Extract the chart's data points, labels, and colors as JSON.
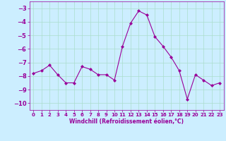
{
  "xlabel": "Windchill (Refroidissement éolien,°C)",
  "x": [
    0,
    1,
    2,
    3,
    4,
    5,
    6,
    7,
    8,
    9,
    10,
    11,
    12,
    13,
    14,
    15,
    16,
    17,
    18,
    19,
    20,
    21,
    22,
    23
  ],
  "y": [
    -7.8,
    -7.6,
    -7.2,
    -7.9,
    -8.5,
    -8.5,
    -7.3,
    -7.5,
    -7.9,
    -7.9,
    -8.3,
    -5.8,
    -4.1,
    -3.2,
    -3.5,
    -5.1,
    -5.8,
    -6.6,
    -7.6,
    -9.7,
    -7.9,
    -8.3,
    -8.7,
    -8.5
  ],
  "line_color": "#990099",
  "marker": "D",
  "marker_size": 2,
  "bg_color": "#cceeff",
  "grid_color": "#aaddcc",
  "tick_color": "#990099",
  "label_color": "#990099",
  "ylim": [
    -10.5,
    -2.5
  ],
  "yticks": [
    -10,
    -9,
    -8,
    -7,
    -6,
    -5,
    -4,
    -3
  ],
  "xlim": [
    -0.5,
    23.5
  ],
  "xticks": [
    0,
    1,
    2,
    3,
    4,
    5,
    6,
    7,
    8,
    9,
    10,
    11,
    12,
    13,
    14,
    15,
    16,
    17,
    18,
    19,
    20,
    21,
    22,
    23
  ],
  "xtick_fontsize": 5.0,
  "ytick_fontsize": 6.0,
  "xlabel_fontsize": 5.5
}
